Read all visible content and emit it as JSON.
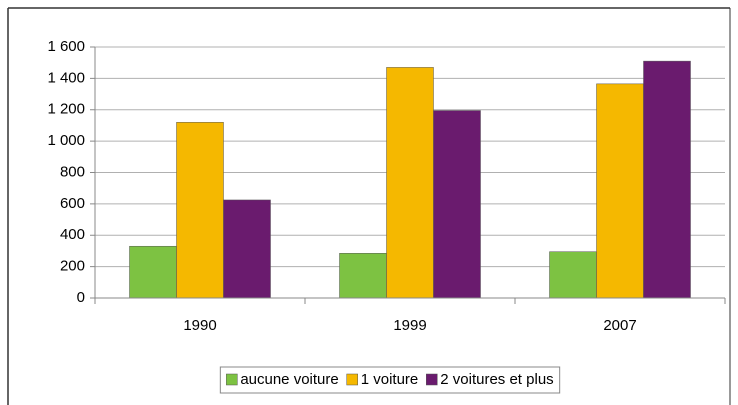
{
  "chart_data": {
    "type": "bar",
    "categories": [
      "1990",
      "1999",
      "2007"
    ],
    "series": [
      {
        "name": "aucune voiture",
        "color": "#7dc242",
        "values": [
          330,
          285,
          295
        ]
      },
      {
        "name": "1 voiture",
        "color": "#f5b800",
        "values": [
          1120,
          1470,
          1365
        ]
      },
      {
        "name": "2 voitures et plus",
        "color": "#6a1b6e",
        "values": [
          625,
          1195,
          1510
        ]
      }
    ],
    "ylim": [
      0,
      1600
    ],
    "yticks": [
      0,
      200,
      400,
      600,
      800,
      {
        "value": 1000,
        "label": "1 000"
      },
      {
        "value": 1200,
        "label": "1 200"
      },
      {
        "value": 1400,
        "label": "1 400"
      },
      {
        "value": 1600,
        "label": "1 600"
      }
    ],
    "grid": true,
    "legend": "bottom"
  }
}
